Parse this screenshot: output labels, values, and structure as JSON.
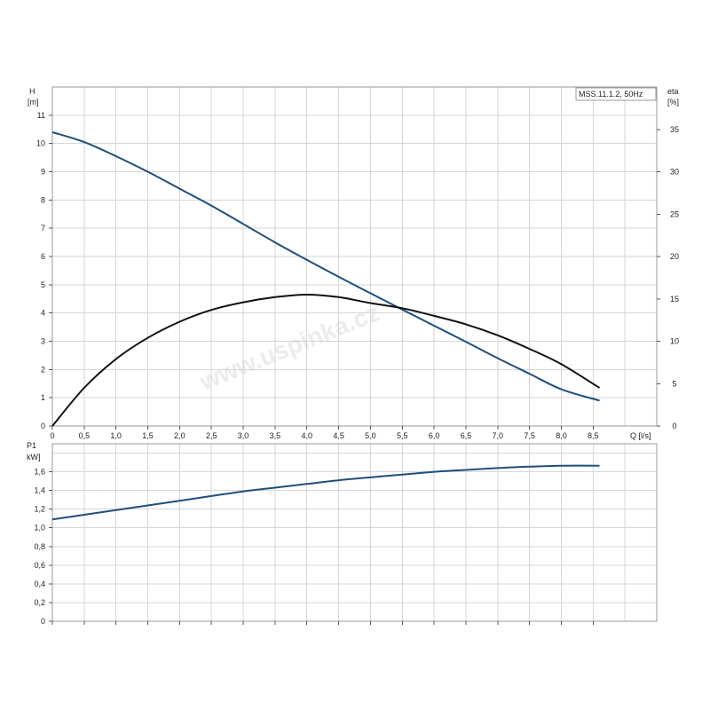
{
  "chart_data": [
    {
      "type": "line",
      "legend_label": "MSS.11.1.2, 50Hz",
      "legend_placement": "top-right",
      "grid": true,
      "ylabel_left": "H",
      "ylabel_left_unit": "[m]",
      "ylabel_right": "eta",
      "ylabel_right_unit": "[%]",
      "xlabel": "Q [l/s]",
      "xlim": [
        0,
        9.5
      ],
      "ylim": [
        0,
        12
      ],
      "ylim_right": [
        0,
        40
      ],
      "x_ticks": [
        "0",
        "0,5",
        "1,0",
        "1,5",
        "2,0",
        "2,5",
        "3,0",
        "3,5",
        "4,0",
        "4,5",
        "5,0",
        "5,5",
        "6,0",
        "6,5",
        "7,0",
        "7,5",
        "8,0",
        "8,5"
      ],
      "y_ticks_left": [
        "0",
        "1",
        "2",
        "3",
        "4",
        "5",
        "6",
        "7",
        "8",
        "9",
        "10",
        "11"
      ],
      "y_ticks_right": [
        "0",
        "5",
        "10",
        "15",
        "20",
        "25",
        "30",
        "35"
      ],
      "series": [
        {
          "color": "#1e4f7a",
          "axis": "left",
          "x": [
            0,
            0.5,
            1.0,
            1.5,
            2.0,
            2.5,
            3.0,
            3.5,
            4.0,
            4.5,
            5.0,
            5.5,
            6.0,
            6.5,
            7.0,
            7.5,
            8.0,
            8.6
          ],
          "values": [
            10.4,
            10.05,
            9.55,
            9.0,
            8.4,
            7.8,
            7.15,
            6.5,
            5.88,
            5.28,
            4.7,
            4.12,
            3.55,
            2.98,
            2.4,
            1.85,
            1.3,
            0.9
          ]
        },
        {
          "color": "#111111",
          "axis": "right",
          "x": [
            0,
            0.5,
            1.0,
            1.5,
            2.0,
            2.5,
            3.0,
            3.5,
            4.0,
            4.5,
            5.0,
            5.5,
            6.0,
            6.5,
            7.0,
            7.5,
            8.0,
            8.6
          ],
          "values": [
            0,
            4.5,
            7.9,
            10.4,
            12.3,
            13.7,
            14.6,
            15.2,
            15.5,
            15.2,
            14.5,
            13.9,
            13.0,
            12.0,
            10.7,
            9.1,
            7.3,
            4.5
          ]
        }
      ]
    },
    {
      "type": "line",
      "grid": true,
      "ylabel": "P1",
      "ylabel_unit": "kW]",
      "xlim": [
        0,
        9.5
      ],
      "ylim": [
        0,
        1.9
      ],
      "y_ticks": [
        "0",
        "0,2",
        "0,4",
        "0,6",
        "0,8",
        "1,0",
        "1,2",
        "1,4",
        "1,6"
      ],
      "series": [
        {
          "color": "#1e4f7a",
          "x": [
            0,
            0.5,
            1.0,
            1.5,
            2.0,
            2.5,
            3.0,
            3.5,
            4.0,
            4.5,
            5.0,
            5.5,
            6.0,
            6.5,
            7.0,
            7.5,
            8.0,
            8.6
          ],
          "values": [
            1.09,
            1.14,
            1.19,
            1.24,
            1.29,
            1.34,
            1.39,
            1.43,
            1.47,
            1.51,
            1.54,
            1.57,
            1.6,
            1.62,
            1.64,
            1.655,
            1.665,
            1.665
          ]
        }
      ]
    }
  ],
  "watermark": "www.uspinka.cz"
}
